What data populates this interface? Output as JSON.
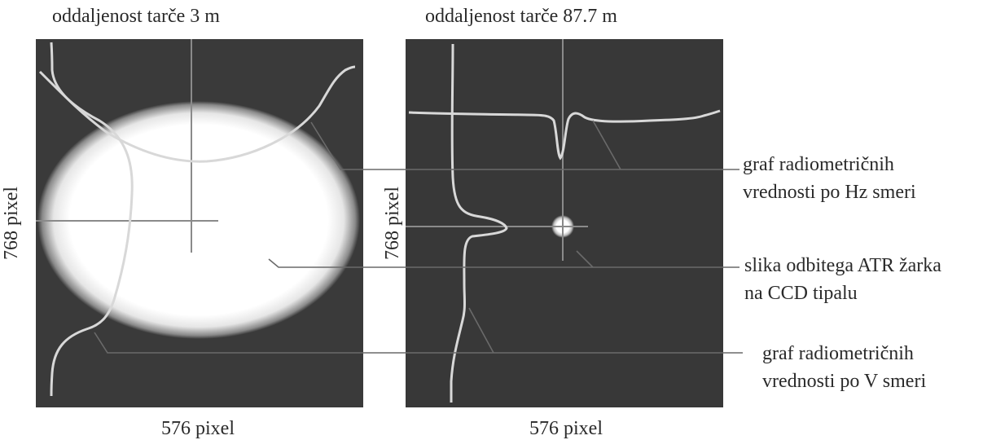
{
  "left_panel": {
    "title": "oddaljenost tarče 3 m",
    "width_label": "576 pixel",
    "height_label": "768 pixel"
  },
  "right_panel": {
    "title": "oddaljenost tarče 87.7 m",
    "width_label": "576 pixel",
    "height_label": "768 pixel"
  },
  "callouts": {
    "hz_graph": [
      "graf radiometričnih",
      "vrednosti po Hz smeri"
    ],
    "atr_image": [
      "slika odbitega ATR žarka",
      "na CCD tipalu"
    ],
    "v_graph": [
      "graf radiometričnih",
      "vrednosti po V smeri"
    ]
  },
  "colors": {
    "panel_background": "#3a3a3a",
    "curve": "#d8d8d8",
    "crosshair": "#8a8a8a",
    "leader_line": "#6a6a6a"
  }
}
